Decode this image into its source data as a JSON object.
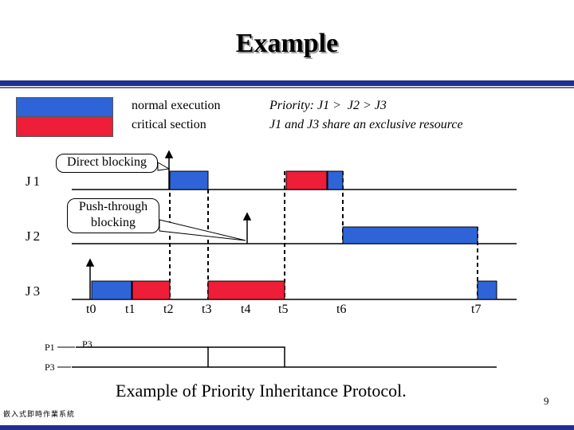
{
  "title": "Example",
  "legend": {
    "normal": "normal execution",
    "critical": "critical section"
  },
  "priority": {
    "line1": "Priority: J1 >  J2 > J3",
    "line2": "J1 and J3 share an exclusive resource"
  },
  "colors": {
    "normal": "#2f64d8",
    "critical": "#ee1d38",
    "rule": "#1f2f8f"
  },
  "callouts": {
    "direct": "Direct blocking",
    "push_line1": "Push-through",
    "push_line2": "blocking"
  },
  "jobs": {
    "j1": "J1",
    "j2": "J2",
    "j3": "J3"
  },
  "ticks": [
    "t0",
    "t1",
    "t2",
    "t3",
    "t4",
    "t5",
    "t6",
    "t7"
  ],
  "signals": {
    "p1": "P1",
    "p3": "P3",
    "p3_note": "P3"
  },
  "caption": "Example of Priority Inheritance Protocol.",
  "page_number": "9",
  "footer": "嵌入式即時作業系統"
}
